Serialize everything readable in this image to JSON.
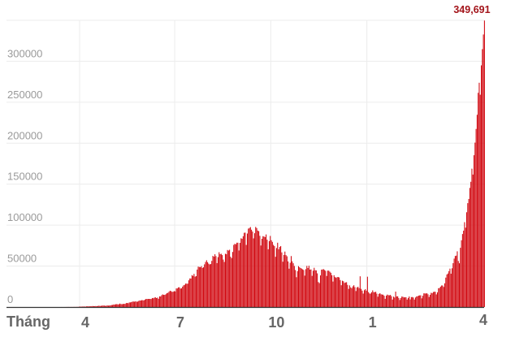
{
  "chart_data": {
    "type": "bar",
    "title": "",
    "xlabel": "Tháng",
    "ylabel": "",
    "ylim": [
      0,
      350000
    ],
    "yticks": [
      0,
      50000,
      100000,
      150000,
      200000,
      250000,
      300000
    ],
    "ytick_labels": [
      "0",
      "50000",
      "100000",
      "150000",
      "200000",
      "250000",
      "300000"
    ],
    "xticks": [
      {
        "date": "2020-04-01",
        "label": "4"
      },
      {
        "date": "2020-07-01",
        "label": "7"
      },
      {
        "date": "2020-10-01",
        "label": "10"
      },
      {
        "date": "2021-01-01",
        "label": "1"
      },
      {
        "date": "2021-04-24",
        "label": "4"
      }
    ],
    "grid": true,
    "bar_color": "#d0050d",
    "annotation": {
      "date": "2021-04-24",
      "value": 349691,
      "text": "349,691",
      "color": "#a3141a"
    },
    "start_date": "2020-03-15",
    "values": [
      20,
      10,
      13,
      24,
      25,
      65,
      83,
      100,
      80,
      87,
      100,
      73,
      160,
      140,
      100,
      230,
      170,
      430,
      480,
      520,
      600,
      510,
      700,
      540,
      770,
      870,
      830,
      900,
      800,
      1000,
      1200,
      1030,
      1040,
      1200,
      990,
      1300,
      1550,
      1280,
      1400,
      1700,
      1750,
      1800,
      1400,
      1560,
      1900,
      1700,
      1800,
      2000,
      2400,
      2500,
      3000,
      3000,
      3400,
      3500,
      3300,
      3300,
      4200,
      3600,
      3500,
      3700,
      3900,
      3800,
      4800,
      5000,
      4600,
      5600,
      5600,
      6000,
      6600,
      6700,
      6500,
      7000,
      6500,
      6600,
      7400,
      8000,
      7900,
      8400,
      8300,
      8100,
      9000,
      9900,
      9800,
      9900,
      9900,
      9900,
      9800,
      11000,
      10700,
      11400,
      11900,
      10900,
      11500,
      10000,
      13000,
      12900,
      14500,
      15400,
      14800,
      14900,
      15600,
      16900,
      17300,
      18600,
      19900,
      19400,
      18500,
      18700,
      19400,
      19100,
      22700,
      22700,
      24000,
      24100,
      22500,
      22800,
      24900,
      26500,
      27100,
      28600,
      28500,
      28500,
      32600,
      34900,
      34800,
      38900,
      38000,
      40400,
      37100,
      37700,
      45700,
      49300,
      48900,
      48600,
      49900,
      47700,
      48500,
      52100,
      55000,
      57100,
      54700,
      52900,
      52000,
      52500,
      56300,
      62500,
      61500,
      64400,
      62100,
      53600,
      60900,
      66900,
      64500,
      65000,
      63400,
      57900,
      55000,
      65000,
      64500,
      69600,
      68900,
      69900,
      61400,
      59700,
      67200,
      75800,
      77200,
      76600,
      78500,
      78500,
      69000,
      78300,
      83900,
      83300,
      86400,
      90600,
      90800,
      75800,
      89700,
      95700,
      96500,
      97600,
      94400,
      92100,
      83800,
      90100,
      97800,
      96400,
      93300,
      92600,
      86900,
      75100,
      83300,
      86500,
      86000,
      85400,
      88600,
      82200,
      70500,
      80500,
      86800,
      81500,
      79500,
      75800,
      74400,
      61300,
      72000,
      78500,
      70500,
      73300,
      74400,
      66700,
      55300,
      63500,
      67700,
      63400,
      61900,
      55700,
      46800,
      54000,
      62200,
      55800,
      53400,
      50100,
      45100,
      36400,
      43800,
      49900,
      48600,
      47600,
      46900,
      46000,
      45200,
      38300,
      46200,
      50200,
      47600,
      50400,
      45700,
      45900,
      38000,
      44300,
      47900,
      44900,
      44700,
      41100,
      30500,
      29200,
      38600,
      45600,
      45900,
      46200,
      45200,
      44100,
      37900,
      44400,
      44400,
      43100,
      41800,
      38800,
      31100,
      38800,
      36600,
      35600,
      36600,
      36600,
      36100,
      32900,
      26600,
      32100,
      31500,
      29400,
      30000,
      30300,
      27000,
      22100,
      26400,
      24000,
      22900,
      25200,
      26600,
      24300,
      19500,
      23900,
      24700,
      23000,
      37500,
      22200,
      20000,
      16400,
      20500,
      21800,
      20000,
      37000,
      18200,
      16500,
      16400,
      18000,
      20300,
      18100,
      18200,
      18600,
      16300,
      12600,
      16000,
      16900,
      15600,
      15200,
      15100,
      13800,
      10000,
      13800,
      15200,
      14500,
      14300,
      14800,
      13200,
      9100,
      12700,
      11600,
      18800,
      13000,
      13100,
      11000,
      8600,
      11000,
      12900,
      12400,
      11700,
      12000,
      11800,
      9100,
      11000,
      12900,
      9300,
      12100,
      12200,
      11600,
      9100,
      11600,
      12900,
      13200,
      13900,
      14200,
      14300,
      10600,
      13700,
      16700,
      16600,
      16500,
      16800,
      15500,
      12300,
      14900,
      17400,
      16800,
      18300,
      18700,
      18600,
      15400,
      17900,
      22900,
      23300,
      24900,
      26300,
      26300,
      24500,
      28900,
      35900,
      39700,
      40900,
      43800,
      46900,
      40700,
      47300,
      53500,
      59100,
      62300,
      62700,
      68000,
      56200,
      53400,
      72300,
      81500,
      89100,
      93200,
      103600,
      96900,
      115700,
      126800,
      131900,
      145400,
      152900,
      168900,
      161700,
      185300,
      200700,
      217400,
      234700,
      261500,
      273800,
      259200,
      295000,
      314800,
      332700,
      349691
    ]
  }
}
